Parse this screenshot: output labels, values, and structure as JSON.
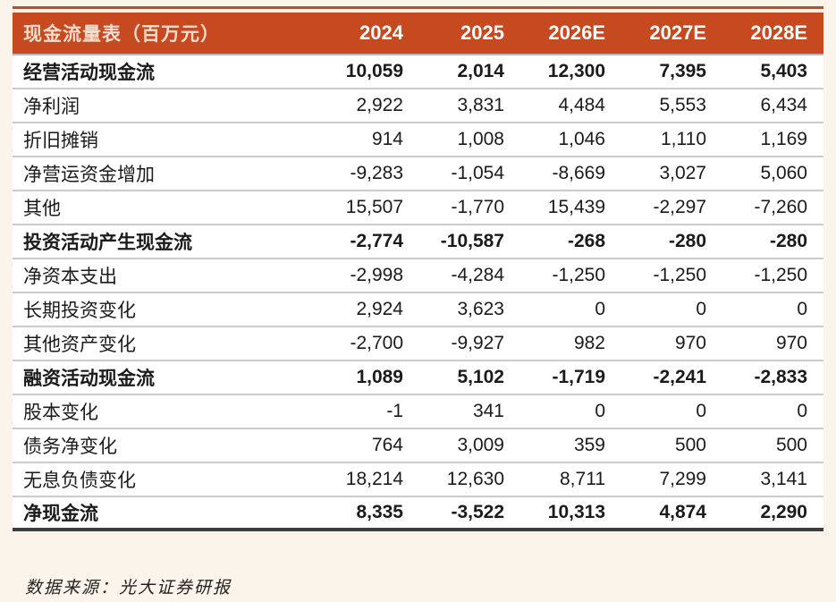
{
  "table": {
    "title": "现金流量表（百万元）",
    "columns": [
      "2024",
      "2025",
      "2026E",
      "2027E",
      "2028E"
    ],
    "rows": [
      {
        "label": "经营活动现金流",
        "bold": true,
        "values": [
          "10,059",
          "2,014",
          "12,300",
          "7,395",
          "5,403"
        ]
      },
      {
        "label": "净利润",
        "bold": false,
        "values": [
          "2,922",
          "3,831",
          "4,484",
          "5,553",
          "6,434"
        ]
      },
      {
        "label": "折旧摊销",
        "bold": false,
        "values": [
          "914",
          "1,008",
          "1,046",
          "1,110",
          "1,169"
        ]
      },
      {
        "label": "净营运资金增加",
        "bold": false,
        "values": [
          "-9,283",
          "-1,054",
          "-8,669",
          "3,027",
          "5,060"
        ]
      },
      {
        "label": "其他",
        "bold": false,
        "values": [
          "15,507",
          "-1,770",
          "15,439",
          "-2,297",
          "-7,260"
        ]
      },
      {
        "label": "投资活动产生现金流",
        "bold": true,
        "values": [
          "-2,774",
          "-10,587",
          "-268",
          "-280",
          "-280"
        ]
      },
      {
        "label": "净资本支出",
        "bold": false,
        "values": [
          "-2,998",
          "-4,284",
          "-1,250",
          "-1,250",
          "-1,250"
        ]
      },
      {
        "label": "长期投资变化",
        "bold": false,
        "values": [
          "2,924",
          "3,623",
          "0",
          "0",
          "0"
        ]
      },
      {
        "label": "其他资产变化",
        "bold": false,
        "values": [
          "-2,700",
          "-9,927",
          "982",
          "970",
          "970"
        ]
      },
      {
        "label": "融资活动现金流",
        "bold": true,
        "values": [
          "1,089",
          "5,102",
          "-1,719",
          "-2,241",
          "-2,833"
        ]
      },
      {
        "label": "股本变化",
        "bold": false,
        "values": [
          "-1",
          "341",
          "0",
          "0",
          "0"
        ]
      },
      {
        "label": "债务净变化",
        "bold": false,
        "values": [
          "764",
          "3,009",
          "359",
          "500",
          "500"
        ]
      },
      {
        "label": "无息负债变化",
        "bold": false,
        "values": [
          "18,214",
          "12,630",
          "8,711",
          "7,299",
          "3,141"
        ]
      },
      {
        "label": "净现金流",
        "bold": true,
        "values": [
          "8,335",
          "-3,522",
          "10,313",
          "4,874",
          "2,290"
        ]
      }
    ]
  },
  "footer": {
    "source": "数据来源：光大证券研报"
  },
  "colors": {
    "header_bg": "#C6491F",
    "header_title_text": "#F7DCCF",
    "header_year_text": "#FFFFFF",
    "page_bg": "#FBF4EB",
    "row_bg": "#FFFFFF",
    "row_separator": "#CBCBCB",
    "bottom_border": "#3D3D3D",
    "body_text": "#1B1B1B"
  }
}
